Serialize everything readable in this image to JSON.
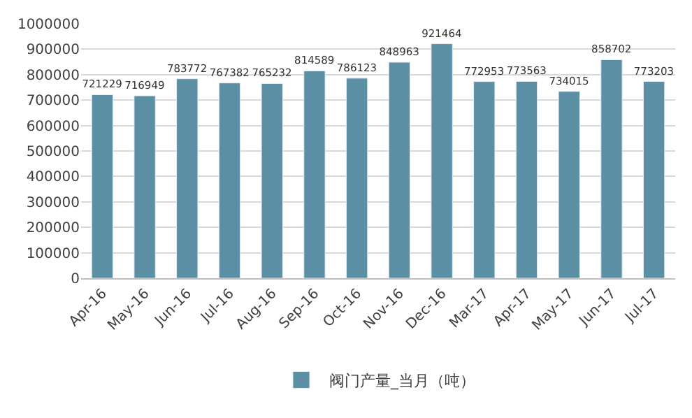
{
  "chart_data": {
    "type": "bar",
    "categories": [
      "Apr-16",
      "May-16",
      "Jun-16",
      "Jul-16",
      "Aug-16",
      "Sep-16",
      "Oct-16",
      "Nov-16",
      "Dec-16",
      "Mar-17",
      "Apr-17",
      "May-17",
      "Jun-17",
      "Jul-17"
    ],
    "series": [
      {
        "name": "阀门产量_当月（吨）",
        "color": "#5b8fa3",
        "values": [
          721229,
          716949,
          783772,
          767382,
          765232,
          814589,
          786123,
          848963,
          921464,
          772953,
          773563,
          734015,
          858702,
          773203
        ]
      }
    ],
    "ylim": [
      0,
      1000000
    ],
    "yticks": [
      0,
      100000,
      200000,
      300000,
      400000,
      500000,
      600000,
      700000,
      800000,
      900000,
      1000000
    ],
    "grid": "y",
    "legend": "bottom",
    "data_labels": true
  }
}
